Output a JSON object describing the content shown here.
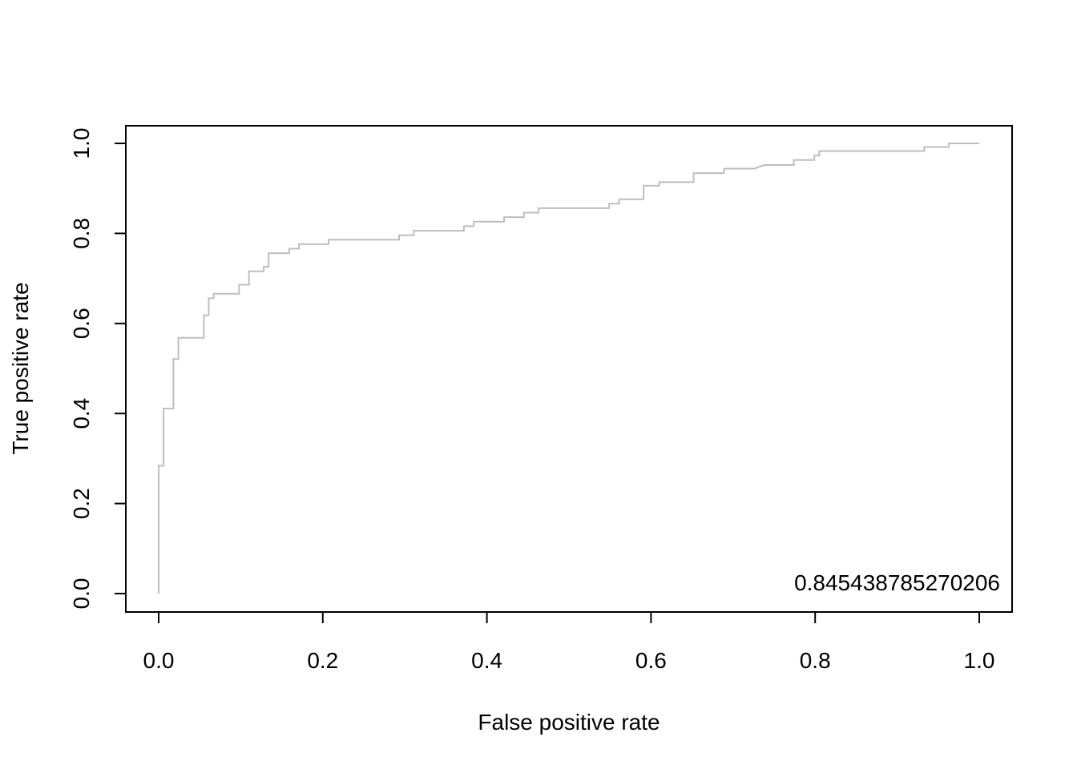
{
  "chart_data": {
    "type": "line",
    "title": "",
    "xlabel": "False positive rate",
    "ylabel": "True positive rate",
    "xlim": [
      0.0,
      1.0
    ],
    "ylim": [
      0.0,
      1.0
    ],
    "xticks": [
      "0.0",
      "0.2",
      "0.4",
      "0.6",
      "0.8",
      "1.0"
    ],
    "yticks": [
      "0.0",
      "0.2",
      "0.4",
      "0.6",
      "0.8",
      "1.0"
    ],
    "grid": false,
    "annotation": "0.845438785270206",
    "series_color": "#bebebe",
    "series": [
      {
        "step": true,
        "points": [
          [
            0.0,
            0.0
          ],
          [
            0.0,
            0.284
          ],
          [
            0.006,
            0.284
          ],
          [
            0.006,
            0.411
          ],
          [
            0.018,
            0.411
          ],
          [
            0.018,
            0.521
          ],
          [
            0.024,
            0.521
          ],
          [
            0.024,
            0.568
          ],
          [
            0.055,
            0.568
          ],
          [
            0.055,
            0.618
          ],
          [
            0.061,
            0.618
          ],
          [
            0.061,
            0.656
          ],
          [
            0.067,
            0.656
          ],
          [
            0.067,
            0.666
          ],
          [
            0.098,
            0.666
          ],
          [
            0.098,
            0.686
          ],
          [
            0.11,
            0.686
          ],
          [
            0.11,
            0.716
          ],
          [
            0.128,
            0.716
          ],
          [
            0.128,
            0.726
          ],
          [
            0.134,
            0.726
          ],
          [
            0.134,
            0.756
          ],
          [
            0.159,
            0.756
          ],
          [
            0.159,
            0.766
          ],
          [
            0.171,
            0.766
          ],
          [
            0.171,
            0.776
          ],
          [
            0.207,
            0.776
          ],
          [
            0.207,
            0.786
          ],
          [
            0.293,
            0.786
          ],
          [
            0.293,
            0.796
          ],
          [
            0.311,
            0.796
          ],
          [
            0.311,
            0.806
          ],
          [
            0.372,
            0.806
          ],
          [
            0.372,
            0.816
          ],
          [
            0.384,
            0.816
          ],
          [
            0.384,
            0.826
          ],
          [
            0.421,
            0.826
          ],
          [
            0.421,
            0.836
          ],
          [
            0.445,
            0.836
          ],
          [
            0.445,
            0.846
          ],
          [
            0.463,
            0.846
          ],
          [
            0.463,
            0.856
          ],
          [
            0.549,
            0.856
          ],
          [
            0.549,
            0.866
          ],
          [
            0.561,
            0.866
          ],
          [
            0.561,
            0.876
          ],
          [
            0.591,
            0.876
          ],
          [
            0.591,
            0.906
          ],
          [
            0.61,
            0.906
          ],
          [
            0.61,
            0.914
          ],
          [
            0.652,
            0.914
          ],
          [
            0.652,
            0.934
          ],
          [
            0.689,
            0.934
          ],
          [
            0.689,
            0.944
          ],
          [
            0.726,
            0.944
          ],
          [
            0.738,
            0.952
          ],
          [
            0.774,
            0.952
          ],
          [
            0.774,
            0.963
          ],
          [
            0.799,
            0.963
          ],
          [
            0.799,
            0.973
          ],
          [
            0.805,
            0.973
          ],
          [
            0.805,
            0.983
          ],
          [
            0.933,
            0.983
          ],
          [
            0.933,
            0.992
          ],
          [
            0.963,
            0.992
          ],
          [
            0.963,
            1.0
          ],
          [
            1.0,
            1.0
          ]
        ]
      }
    ]
  }
}
